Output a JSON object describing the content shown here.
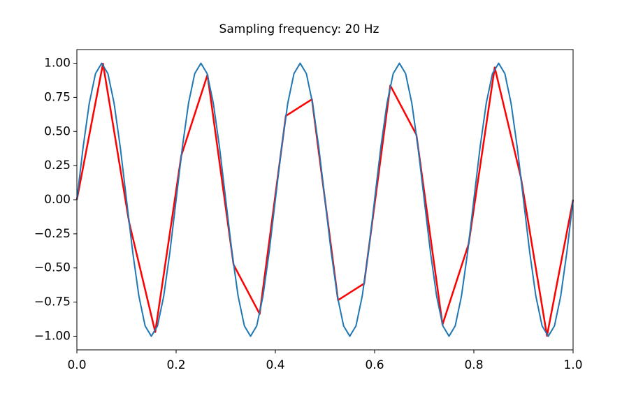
{
  "chart_data": {
    "type": "line",
    "title": "Sampling frequency: 20 Hz",
    "xlim": [
      0,
      1
    ],
    "ylim": [
      -1.1,
      1.1
    ],
    "xticks": [
      {
        "value": 0,
        "label": "0.0"
      },
      {
        "value": 0.2,
        "label": "0.2"
      },
      {
        "value": 0.4,
        "label": "0.4"
      },
      {
        "value": 0.6,
        "label": "0.6"
      },
      {
        "value": 0.8,
        "label": "0.8"
      },
      {
        "value": 1,
        "label": "1.0"
      }
    ],
    "yticks": [
      {
        "value": -1,
        "label": "−1.00"
      },
      {
        "value": -0.75,
        "label": "−0.75"
      },
      {
        "value": -0.5,
        "label": "−0.50"
      },
      {
        "value": -0.25,
        "label": "−0.25"
      },
      {
        "value": 0,
        "label": "0.00"
      },
      {
        "value": 0.25,
        "label": "0.25"
      },
      {
        "value": 0.5,
        "label": "0.50"
      },
      {
        "value": 0.75,
        "label": "0.75"
      },
      {
        "value": 1,
        "label": "1.00"
      }
    ],
    "series": [
      {
        "color": "#ff0000",
        "width": 2.5,
        "x": [
          0,
          0.0526,
          0.1053,
          0.1579,
          0.2105,
          0.2632,
          0.3158,
          0.3684,
          0.4211,
          0.4737,
          0.5263,
          0.5789,
          0.6316,
          0.6842,
          0.7368,
          0.7895,
          0.8421,
          0.8947,
          0.9474,
          1
        ],
        "values": [
          0,
          0.997,
          -0.165,
          -0.969,
          0.324,
          0.915,
          -0.476,
          -0.837,
          0.614,
          0.736,
          -0.736,
          -0.614,
          0.837,
          0.476,
          -0.915,
          -0.324,
          0.969,
          0.165,
          -0.997,
          0
        ]
      },
      {
        "color": "#1f77b4",
        "width": 2,
        "x": [
          0,
          0.0125,
          0.025,
          0.0375,
          0.05,
          0.0625,
          0.075,
          0.0875,
          0.1,
          0.1125,
          0.125,
          0.1375,
          0.15,
          0.1625,
          0.175,
          0.1875,
          0.2,
          0.2125,
          0.225,
          0.2375,
          0.25,
          0.2625,
          0.275,
          0.2875,
          0.3,
          0.3125,
          0.325,
          0.3375,
          0.35,
          0.3625,
          0.375,
          0.3875,
          0.4,
          0.4125,
          0.425,
          0.4375,
          0.45,
          0.4625,
          0.475,
          0.4875,
          0.5,
          0.5125,
          0.525,
          0.5375,
          0.55,
          0.5625,
          0.575,
          0.5875,
          0.6,
          0.6125,
          0.625,
          0.6375,
          0.65,
          0.6625,
          0.675,
          0.6875,
          0.7,
          0.7125,
          0.725,
          0.7375,
          0.75,
          0.7625,
          0.775,
          0.7875,
          0.8,
          0.8125,
          0.825,
          0.8375,
          0.85,
          0.8625,
          0.875,
          0.8875,
          0.9,
          0.9125,
          0.925,
          0.9375,
          0.95,
          0.9625,
          0.975,
          0.9875,
          1
        ],
        "values": [
          0,
          0.383,
          0.707,
          0.924,
          1,
          0.924,
          0.707,
          0.383,
          0,
          -0.383,
          -0.707,
          -0.924,
          -1,
          -0.924,
          -0.707,
          -0.383,
          0,
          0.383,
          0.707,
          0.924,
          1,
          0.924,
          0.707,
          0.383,
          0,
          -0.383,
          -0.707,
          -0.924,
          -1,
          -0.924,
          -0.707,
          -0.383,
          0,
          0.383,
          0.707,
          0.924,
          1,
          0.924,
          0.707,
          0.383,
          0,
          -0.383,
          -0.707,
          -0.924,
          -1,
          -0.924,
          -0.707,
          -0.383,
          0,
          0.383,
          0.707,
          0.924,
          1,
          0.924,
          0.707,
          0.383,
          0,
          -0.383,
          -0.707,
          -0.924,
          -1,
          -0.924,
          -0.707,
          -0.383,
          0,
          0.383,
          0.707,
          0.924,
          1,
          0.924,
          0.707,
          0.383,
          0,
          -0.383,
          -0.707,
          -0.924,
          -1,
          -0.924,
          -0.707,
          -0.383,
          0
        ]
      }
    ]
  }
}
